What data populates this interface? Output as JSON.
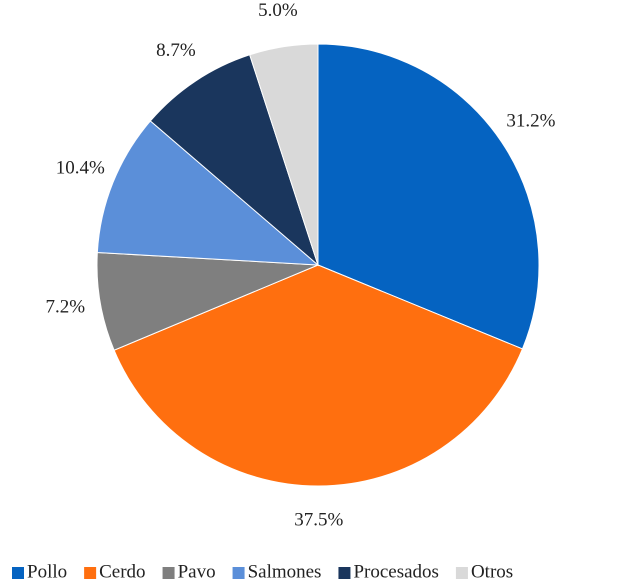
{
  "chart_data": {
    "type": "pie",
    "categories": [
      "Pollo",
      "Cerdo",
      "Pavo",
      "Salmones",
      "Procesados",
      "Otros"
    ],
    "values": [
      31.2,
      37.5,
      7.2,
      10.4,
      8.7,
      5.0
    ],
    "value_labels": [
      "31.2%",
      "37.5%",
      "7.2%",
      "10.4%",
      "8.7%",
      "5.0%"
    ],
    "colors": [
      "#0563c1",
      "#ff6f0f",
      "#7f7f7f",
      "#5b8fd9",
      "#1a365d",
      "#d9d9d9"
    ],
    "legend": "bottom"
  }
}
